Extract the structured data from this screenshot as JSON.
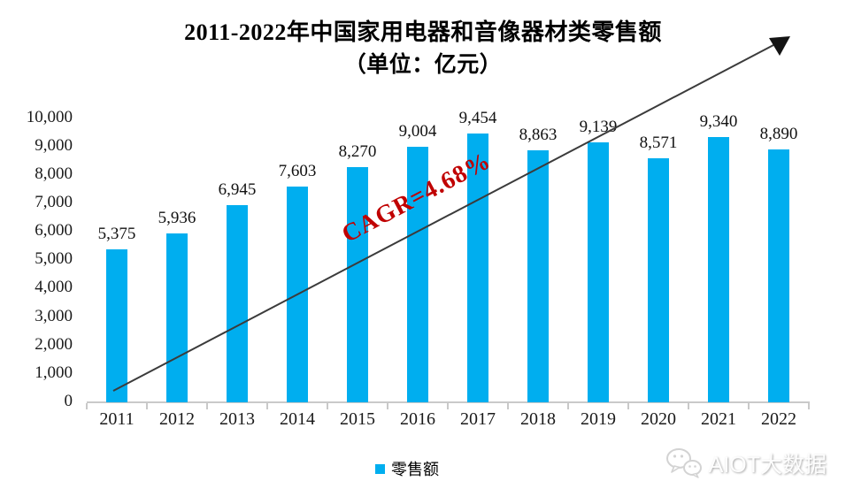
{
  "title": {
    "line1": "2011-2022年中国家用电器和音像器材类零售额",
    "line2": "（单位：亿元）"
  },
  "chart_data": {
    "type": "bar",
    "title": "2011-2022年中国家用电器和音像器材类零售额（单位：亿元）",
    "categories": [
      "2011",
      "2012",
      "2013",
      "2014",
      "2015",
      "2016",
      "2017",
      "2018",
      "2019",
      "2020",
      "2021",
      "2022"
    ],
    "series": [
      {
        "name": "零售额",
        "values": [
          5375,
          5936,
          6945,
          7603,
          8270,
          9004,
          9454,
          8863,
          9139,
          8571,
          9340,
          8890
        ]
      }
    ],
    "xlabel": "",
    "ylabel": "",
    "ylim": [
      0,
      10000
    ],
    "ytick_step": 1000,
    "grid": false,
    "data_labels": true,
    "bar_color": "#00AEEF",
    "legend": {
      "position": "bottom",
      "swatch_color": "#00AEEF"
    },
    "annotation": {
      "text": "CAGR=4.68%",
      "color": "#C00000"
    },
    "trend_arrow": {
      "color": "#3B3B3B",
      "head_color": "#141414"
    }
  },
  "watermark": {
    "label": "AIOT大数据",
    "icon": "wechat-icon"
  }
}
